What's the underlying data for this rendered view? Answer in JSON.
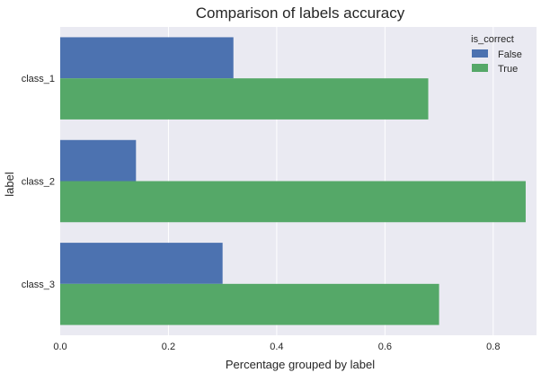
{
  "chart_data": {
    "type": "bar",
    "orientation": "horizontal",
    "title": "Comparison of labels accuracy",
    "xlabel": "Percentage grouped by label",
    "ylabel": "label",
    "categories": [
      "class_1",
      "class_2",
      "class_3"
    ],
    "xlim": [
      0,
      0.88
    ],
    "xticks": [
      "0.0",
      "0.2",
      "0.4",
      "0.6",
      "0.8"
    ],
    "grid": true,
    "legend": {
      "title": "is_correct",
      "placement": "top-right"
    },
    "series": [
      {
        "name": "False",
        "color": "#4c72b0",
        "values": [
          0.32,
          0.14,
          0.3
        ]
      },
      {
        "name": "True",
        "color": "#55a868",
        "values": [
          0.68,
          0.86,
          0.7
        ]
      }
    ],
    "background": "#eaeaf2"
  }
}
